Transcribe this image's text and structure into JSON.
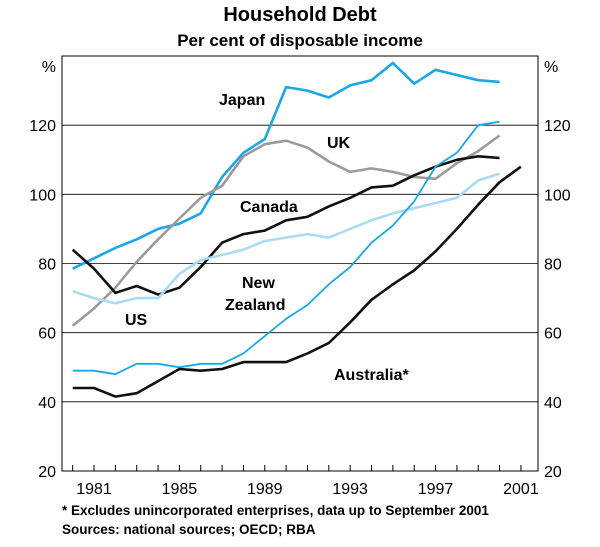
{
  "title": "Household Debt",
  "subtitle": "Per cent of disposable income",
  "footnotes": [
    "*    Excludes unincorporated enterprises, data up to September 2001",
    "Sources: national sources; OECD; RBA"
  ],
  "chart_data": {
    "type": "line",
    "title": "Household Debt",
    "subtitle": "Per cent of disposable income",
    "y_unit_left": "%",
    "y_unit_right": "%",
    "ylim": [
      20,
      140
    ],
    "yticks": [
      20,
      40,
      60,
      80,
      100,
      120
    ],
    "xlim": [
      1979.5,
      2001.8
    ],
    "xticks": [
      1981,
      1985,
      1989,
      1993,
      1997,
      2001
    ],
    "grid": true,
    "legend": "inline labels",
    "series": [
      {
        "name": "Japan",
        "color": "#1aa7e8",
        "x": [
          1980,
          1981,
          1982,
          1983,
          1984,
          1985,
          1986,
          1987,
          1988,
          1989,
          1990,
          1991,
          1992,
          1993,
          1994,
          1995,
          1996,
          1997,
          1998,
          1999,
          2000
        ],
        "values": [
          78.5,
          81.5,
          84.5,
          87,
          90,
          91.5,
          94.5,
          105,
          112,
          116,
          131,
          130,
          128,
          131.5,
          133,
          138,
          132,
          136,
          134.5,
          133,
          132.5
        ]
      },
      {
        "name": "UK",
        "color": "#9b9b9b",
        "x": [
          1980,
          1981,
          1982,
          1983,
          1984,
          1985,
          1986,
          1987,
          1988,
          1989,
          1990,
          1991,
          1992,
          1993,
          1994,
          1995,
          1996,
          1997,
          1998,
          1999,
          2000
        ],
        "values": [
          62,
          67,
          73,
          80.5,
          87,
          93,
          99,
          102.5,
          111,
          114.5,
          115.5,
          113.5,
          109.5,
          106.5,
          107.5,
          106.5,
          105,
          104.5,
          109,
          112.5,
          117
        ]
      },
      {
        "name": "Canada",
        "color": "#111111",
        "x": [
          1980,
          1981,
          1982,
          1983,
          1984,
          1985,
          1986,
          1987,
          1988,
          1989,
          1990,
          1991,
          1992,
          1993,
          1994,
          1995,
          1996,
          1997,
          1998,
          1999,
          2000
        ],
        "values": [
          84,
          78.5,
          71.5,
          73.5,
          71,
          73,
          79,
          86,
          88.5,
          89.5,
          92.5,
          93.5,
          96.5,
          99,
          102,
          102.5,
          105.5,
          108,
          110,
          111,
          110.5
        ]
      },
      {
        "name": "US",
        "color": "#a8dcf6",
        "x": [
          1980,
          1981,
          1982,
          1983,
          1984,
          1985,
          1986,
          1987,
          1988,
          1989,
          1990,
          1991,
          1992,
          1993,
          1994,
          1995,
          1996,
          1997,
          1998,
          1999,
          2000
        ],
        "values": [
          72,
          70,
          68.5,
          70,
          70,
          77,
          81,
          82.5,
          84,
          86.5,
          87.5,
          88.5,
          87.5,
          90,
          92.5,
          94.5,
          96,
          97.5,
          99,
          104,
          106
        ]
      },
      {
        "name": "New Zealand",
        "color": "#1aa7e8",
        "x": [
          1980,
          1981,
          1982,
          1983,
          1984,
          1985,
          1986,
          1987,
          1988,
          1989,
          1990,
          1991,
          1992,
          1993,
          1994,
          1995,
          1996,
          1997,
          1998,
          1999,
          2000
        ],
        "values": [
          49,
          49,
          48,
          51,
          51,
          50,
          51,
          51,
          54,
          59,
          64,
          68,
          74,
          79,
          86,
          91,
          98,
          108,
          112,
          120,
          121
        ]
      },
      {
        "name": "Australia*",
        "color": "#111111",
        "x": [
          1980,
          1981,
          1982,
          1983,
          1984,
          1985,
          1986,
          1987,
          1988,
          1989,
          1990,
          1991,
          1992,
          1993,
          1994,
          1995,
          1996,
          1997,
          1998,
          1999,
          2000,
          2001
        ],
        "values": [
          44,
          44,
          41.5,
          42.5,
          46,
          49.5,
          49,
          49.5,
          51.5,
          51.5,
          51.5,
          54,
          57,
          63,
          69.5,
          74,
          78,
          83.5,
          90,
          97,
          103.5,
          108
        ]
      }
    ]
  }
}
